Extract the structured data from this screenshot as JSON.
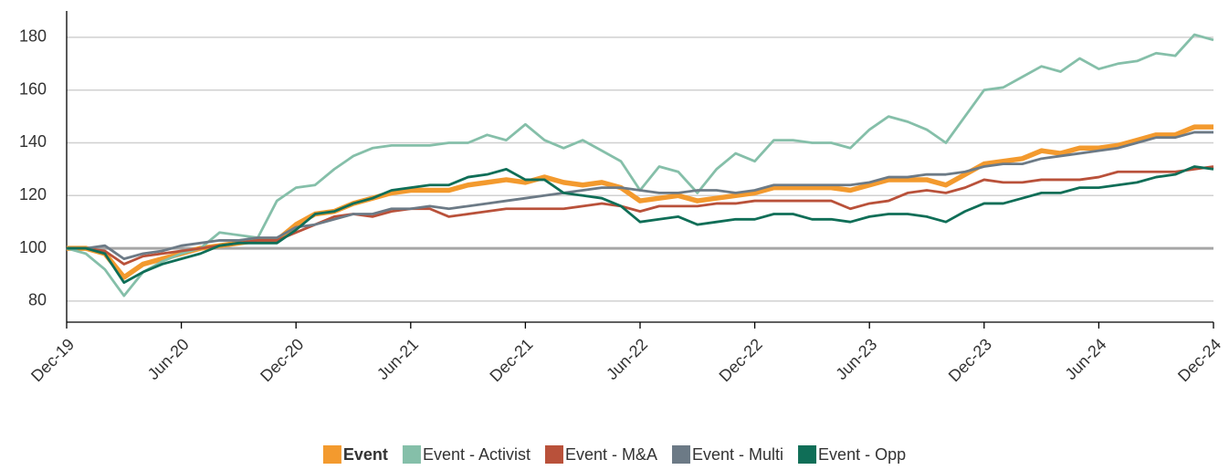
{
  "chart_data": {
    "type": "line",
    "categories": [
      "Dec-19",
      null,
      null,
      null,
      null,
      null,
      "Jun-20",
      null,
      null,
      null,
      null,
      null,
      "Dec-20",
      null,
      null,
      null,
      null,
      null,
      "Jun-21",
      null,
      null,
      null,
      null,
      null,
      "Dec-21",
      null,
      null,
      null,
      null,
      null,
      "Jun-22",
      null,
      null,
      null,
      null,
      null,
      "Dec-22",
      null,
      null,
      null,
      null,
      null,
      "Jun-23",
      null,
      null,
      null,
      null,
      null,
      "Dec-23",
      null,
      null,
      null,
      null,
      null,
      "Jun-24",
      null,
      null,
      null,
      null,
      null,
      "Dec-24"
    ],
    "ylim": [
      72,
      190
    ],
    "yticks": [
      80,
      100,
      120,
      140,
      160,
      180
    ],
    "grid": true,
    "reference_line": 100,
    "legend": "bottom",
    "series": [
      {
        "name": "Event",
        "color": "#f39a2e",
        "values": [
          100,
          100,
          98,
          89,
          94,
          96,
          98,
          100,
          101,
          102,
          103,
          103,
          109,
          113,
          114,
          117,
          119,
          121,
          122,
          122,
          122,
          124,
          125,
          126,
          125,
          127,
          125,
          124,
          125,
          123,
          118,
          119,
          120,
          118,
          119,
          120,
          121,
          123,
          123,
          123,
          123,
          122,
          124,
          126,
          126,
          126,
          124,
          128,
          132,
          133,
          134,
          137,
          136,
          138,
          138,
          139,
          141,
          143,
          143,
          146,
          146
        ]
      },
      {
        "name": "Event - Activist",
        "color": "#85bfa9",
        "values": [
          100,
          98,
          92,
          82,
          91,
          95,
          98,
          100,
          106,
          105,
          104,
          118,
          123,
          124,
          130,
          135,
          138,
          139,
          139,
          139,
          140,
          140,
          143,
          141,
          147,
          141,
          138,
          141,
          137,
          133,
          122,
          131,
          129,
          121,
          130,
          136,
          133,
          141,
          141,
          140,
          140,
          138,
          145,
          150,
          148,
          145,
          140,
          150,
          160,
          161,
          165,
          169,
          167,
          172,
          168,
          170,
          171,
          174,
          173,
          181,
          179
        ]
      },
      {
        "name": "Event - M&A",
        "color": "#b9513a",
        "values": [
          100,
          100,
          99,
          94,
          97,
          98,
          99,
          100,
          101,
          102,
          103,
          103,
          106,
          109,
          112,
          113,
          112,
          114,
          115,
          115,
          112,
          113,
          114,
          115,
          115,
          115,
          115,
          116,
          117,
          116,
          114,
          116,
          116,
          116,
          117,
          117,
          118,
          118,
          118,
          118,
          118,
          115,
          117,
          118,
          121,
          122,
          121,
          123,
          126,
          125,
          125,
          126,
          126,
          126,
          127,
          129,
          129,
          129,
          129,
          130,
          131
        ]
      },
      {
        "name": "Event - Multi",
        "color": "#6c7a86",
        "values": [
          100,
          100,
          101,
          96,
          98,
          99,
          101,
          102,
          103,
          103,
          104,
          104,
          108,
          109,
          111,
          113,
          113,
          115,
          115,
          116,
          115,
          116,
          117,
          118,
          119,
          120,
          121,
          122,
          123,
          123,
          122,
          121,
          121,
          122,
          122,
          121,
          122,
          124,
          124,
          124,
          124,
          124,
          125,
          127,
          127,
          128,
          128,
          129,
          131,
          132,
          132,
          134,
          135,
          136,
          137,
          138,
          140,
          142,
          142,
          144,
          144
        ]
      },
      {
        "name": "Event - Opp",
        "color": "#0f6e57",
        "values": [
          100,
          100,
          98,
          87,
          91,
          94,
          96,
          98,
          101,
          102,
          102,
          102,
          107,
          113,
          114,
          117,
          119,
          122,
          123,
          124,
          124,
          127,
          128,
          130,
          126,
          126,
          121,
          120,
          119,
          116,
          110,
          111,
          112,
          109,
          110,
          111,
          111,
          113,
          113,
          111,
          111,
          110,
          112,
          113,
          113,
          112,
          110,
          114,
          117,
          117,
          119,
          121,
          121,
          123,
          123,
          124,
          125,
          127,
          128,
          131,
          130
        ]
      }
    ]
  }
}
